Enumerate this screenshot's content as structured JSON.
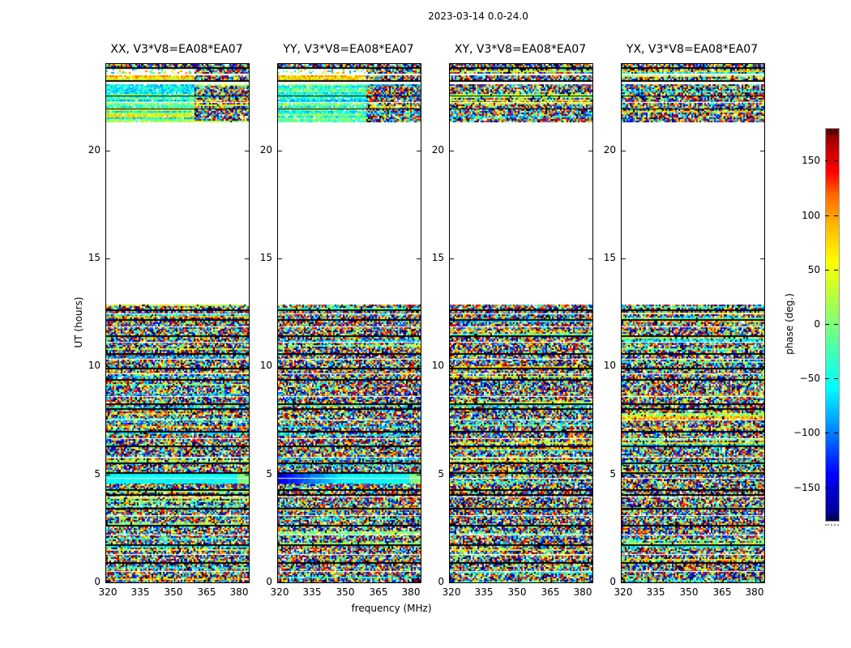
{
  "chart_data": {
    "type": "heatmap",
    "title": "2023-03-14 0.0-24.0",
    "panels": [
      {
        "id": "XX",
        "title": "XX, V3*V8=EA08*EA07",
        "top_band_style": "coherent-left",
        "has_cyan_feature": true,
        "cyan_dark_left": false
      },
      {
        "id": "YY",
        "title": "YY, V3*V8=EA08*EA07",
        "top_band_style": "coherent-left",
        "has_cyan_feature": true,
        "cyan_dark_left": true
      },
      {
        "id": "XY",
        "title": "XY, V3*V8=EA08*EA07",
        "top_band_style": "random",
        "has_cyan_feature": false,
        "cyan_dark_left": false
      },
      {
        "id": "YX",
        "title": "YX, V3*V8=EA08*EA07",
        "top_band_style": "random",
        "has_cyan_feature": false,
        "cyan_dark_left": false
      }
    ],
    "xaxis": {
      "label": "frequency (MHz)",
      "range": [
        319,
        384
      ],
      "ticks": [
        320,
        335,
        350,
        365,
        380
      ],
      "tick_labels": [
        "320",
        "335",
        "350",
        "365",
        "380"
      ]
    },
    "yaxis": {
      "label": "UT (hours)",
      "range": [
        0,
        24
      ],
      "ticks": [
        0,
        5,
        10,
        15,
        20
      ],
      "tick_labels": [
        "0",
        "5",
        "10",
        "15",
        "20"
      ]
    },
    "colorbar": {
      "label": "phase (deg.)",
      "range": [
        -180,
        180
      ],
      "colormap": "jet",
      "ticks": [
        150,
        100,
        50,
        0,
        -50,
        -100,
        -150
      ],
      "tick_labels": [
        "150",
        "100",
        "50",
        "0",
        "−50",
        "−100",
        "−150"
      ]
    },
    "content": {
      "description": "random interferometric phase noise spanning the full -180..180 deg range",
      "data_bands_ut": [
        [
          0,
          12.86
        ],
        [
          21.3,
          24.0
        ]
      ],
      "gap_ut": [
        12.86,
        21.3
      ],
      "black_lines_ut": [
        12.62,
        12.18,
        11.42,
        10.62,
        9.92,
        9.42,
        8.28,
        8.06,
        7.02,
        6.32,
        5.56,
        5.1,
        4.3,
        4.08,
        3.46,
        2.66,
        1.76,
        0.92
      ],
      "white_lines_ut": [
        12.44,
        11.86,
        11.12,
        10.36,
        9.66,
        8.62,
        7.52,
        6.66,
        5.82,
        4.85,
        3.96,
        3.12,
        2.2,
        1.32,
        0.52
      ],
      "cyan_feature_ut": [
        4.6,
        5.02
      ],
      "cyan_feature_white_line_ut": 4.85,
      "coherent_fraction": 0.62,
      "top_band_rows": [
        {
          "ut": [
            23.85,
            24.0
          ],
          "style": "noise"
        },
        {
          "ut": [
            23.79,
            23.85
          ],
          "style": "black"
        },
        {
          "ut": [
            23.55,
            23.79
          ],
          "style": "sparse"
        },
        {
          "ut": [
            23.48,
            23.55
          ],
          "style": "white"
        },
        {
          "ut": [
            23.25,
            23.48
          ],
          "style": "warm"
        },
        {
          "ut": [
            23.19,
            23.25
          ],
          "style": "black"
        },
        {
          "ut": [
            23.08,
            23.19
          ],
          "style": "white"
        },
        {
          "ut": [
            22.55,
            23.08
          ],
          "style": "cool"
        },
        {
          "ut": [
            22.49,
            22.55
          ],
          "style": "black"
        },
        {
          "ut": [
            22.25,
            22.49
          ],
          "style": "cool"
        },
        {
          "ut": [
            22.19,
            22.25
          ],
          "style": "white"
        },
        {
          "ut": [
            21.95,
            22.19
          ],
          "style": "mixed"
        },
        {
          "ut": [
            21.89,
            21.95
          ],
          "style": "black"
        },
        {
          "ut": [
            21.3,
            21.89
          ],
          "style": "mixed"
        }
      ]
    }
  }
}
